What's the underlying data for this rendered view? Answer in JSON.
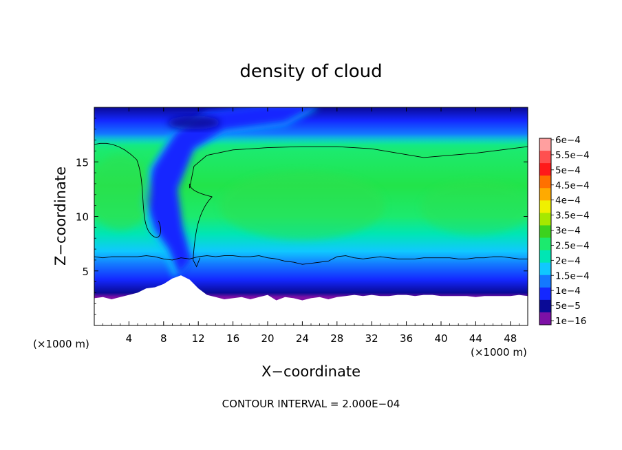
{
  "chart_data": {
    "type": "heatmap",
    "title": "density of cloud",
    "xlabel": "X−coordinate",
    "ylabel": "Z−coordinate",
    "x_unit": "(×1000 m)",
    "y_unit": "(×1000 m)",
    "footer": "CONTOUR INTERVAL = 2.000E−04",
    "xlim": [
      0,
      50
    ],
    "ylim": [
      0,
      20
    ],
    "x_ticks": [
      4,
      8,
      12,
      16,
      20,
      24,
      28,
      32,
      36,
      40,
      44,
      48
    ],
    "x_tick_labels": [
      "4",
      "8",
      "12",
      "16",
      "20",
      "24",
      "28",
      "32",
      "36",
      "40",
      "44",
      "48"
    ],
    "y_ticks": [
      5,
      10,
      15
    ],
    "y_tick_labels": [
      "5",
      "10",
      "15"
    ],
    "colorbar": {
      "labels": [
        "6e−4",
        "5.5e−4",
        "5e−4",
        "4.5e−4",
        "4e−4",
        "3.5e−4",
        "3e−4",
        "2.5e−4",
        "2e−4",
        "1.5e−4",
        "1e−4",
        "5e−5",
        "1e−16"
      ],
      "values": [
        0.0006,
        0.00055,
        0.0005,
        0.00045,
        0.0004,
        0.00035,
        0.0003,
        0.00025,
        0.0002,
        0.00015,
        0.0001,
        5e-05,
        1e-16
      ],
      "colors": [
        "#ff9f9f",
        "#ff5050",
        "#ff1a1a",
        "#ff7000",
        "#ffaa00",
        "#f0f000",
        "#a6e800",
        "#3cd21e",
        "#1cea6e",
        "#00e6b4",
        "#10c8ff",
        "#1478ff",
        "#1428ff",
        "#0a0a96",
        "#7d10a6"
      ]
    },
    "contour_level": 0.0002,
    "contour_interval": 0.0002,
    "ground_top_z": [
      2.5,
      2.6,
      2.4,
      2.6,
      2.8,
      3.0,
      3.4,
      3.5,
      3.8,
      4.3,
      4.6,
      4.2,
      3.4,
      2.8,
      2.6,
      2.4,
      2.5,
      2.6,
      2.4,
      2.6,
      2.8,
      2.3,
      2.6,
      2.5,
      2.3,
      2.5,
      2.6,
      2.4,
      2.6,
      2.7,
      2.8,
      2.7,
      2.8,
      2.7,
      2.7,
      2.8,
      2.8,
      2.7,
      2.8,
      2.8,
      2.7,
      2.7,
      2.7,
      2.7,
      2.6,
      2.7,
      2.7,
      2.7,
      2.7,
      2.8,
      2.7
    ],
    "contour_z": [
      6.3,
      6.2,
      6.3,
      6.3,
      6.3,
      6.3,
      6.4,
      6.3,
      6.1,
      6.0,
      6.2,
      6.1,
      6.3,
      6.4,
      6.3,
      6.4,
      6.4,
      6.3,
      6.3,
      6.4,
      6.2,
      6.1,
      5.9,
      5.8,
      5.6,
      5.7,
      5.8,
      5.9,
      6.3,
      6.4,
      6.2,
      6.1,
      6.2,
      6.3,
      6.2,
      6.1,
      6.1,
      6.1,
      6.2,
      6.2,
      6.2,
      6.2,
      6.1,
      6.1,
      6.2,
      6.2,
      6.3,
      6.3,
      6.2,
      6.1,
      6.1
    ]
  }
}
